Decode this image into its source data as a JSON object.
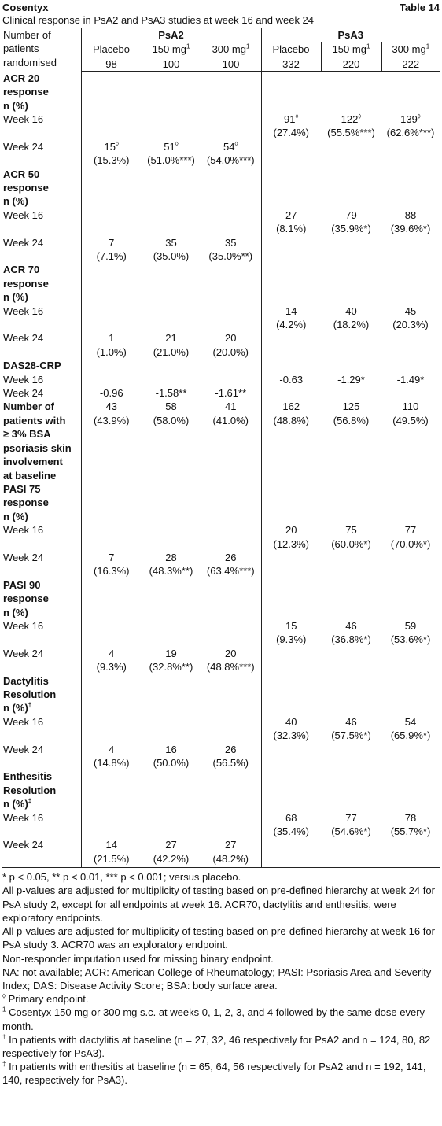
{
  "header": {
    "brand": "Cosentyx",
    "table_label": "Table 14",
    "caption": "Clinical response in PsA2 and PsA3 studies at week 16 and week 24"
  },
  "table": {
    "corner": [
      "Number of",
      "patients",
      "randomised"
    ],
    "groups": [
      "PsA2",
      "PsA3"
    ],
    "arms": [
      {
        "text": "Placebo"
      },
      {
        "text": "150 mg",
        "sup": "1"
      },
      {
        "text": "300 mg",
        "sup": "1"
      },
      {
        "text": "Placebo"
      },
      {
        "text": "150 mg",
        "sup": "1"
      },
      {
        "text": "300 mg",
        "sup": "1"
      }
    ],
    "n": [
      "98",
      "100",
      "100",
      "332",
      "220",
      "222"
    ],
    "rows": [
      {
        "label": [
          "ACR 20",
          "response",
          "n (%)"
        ],
        "bold": true
      },
      {
        "label": [
          "Week 16"
        ],
        "cells": [
          null,
          null,
          null,
          {
            "value": "91",
            "sup": "◊",
            "pct": "(27.4%)"
          },
          {
            "value": "122",
            "sup": "◊",
            "pct": "(55.5%***)"
          },
          {
            "value": "139",
            "sup": "◊",
            "pct": "(62.6%***)"
          }
        ]
      },
      {
        "label": [
          "Week 24"
        ],
        "cells": [
          {
            "value": "15",
            "sup": "◊",
            "pct": "(15.3%)"
          },
          {
            "value": "51",
            "sup": "◊",
            "pct": "(51.0%***)"
          },
          {
            "value": "54",
            "sup": "◊",
            "pct": "(54.0%***)"
          },
          null,
          null,
          null
        ]
      },
      {
        "label": [
          "ACR 50",
          "response",
          "n (%)"
        ],
        "bold": true
      },
      {
        "label": [
          "Week 16"
        ],
        "cells": [
          null,
          null,
          null,
          {
            "value": "27",
            "pct": "(8.1%)"
          },
          {
            "value": "79",
            "pct": "(35.9%*)"
          },
          {
            "value": "88",
            "pct": "(39.6%*)"
          }
        ]
      },
      {
        "label": [
          "Week 24"
        ],
        "cells": [
          {
            "value": "7",
            "pct": "(7.1%)"
          },
          {
            "value": "35",
            "pct": "(35.0%)"
          },
          {
            "value": "35",
            "pct": "(35.0%**)"
          },
          null,
          null,
          null
        ]
      },
      {
        "label": [
          "ACR 70",
          "response",
          "n (%)"
        ],
        "bold": true
      },
      {
        "label": [
          "Week 16"
        ],
        "cells": [
          null,
          null,
          null,
          {
            "value": "14",
            "pct": "(4.2%)"
          },
          {
            "value": "40",
            "pct": "(18.2%)"
          },
          {
            "value": "45",
            "pct": "(20.3%)"
          }
        ]
      },
      {
        "label": [
          "Week 24"
        ],
        "cells": [
          {
            "value": "1",
            "pct": "(1.0%)"
          },
          {
            "value": "21",
            "pct": "(21.0%)"
          },
          {
            "value": "20",
            "pct": "(20.0%)"
          },
          null,
          null,
          null
        ]
      },
      {
        "label": [
          "DAS28-CRP"
        ],
        "bold": true
      },
      {
        "label": [
          "Week 16"
        ],
        "cells": [
          null,
          null,
          null,
          {
            "value": "-0.63"
          },
          {
            "value": "-1.29*"
          },
          {
            "value": "-1.49*"
          }
        ]
      },
      {
        "label": [
          "Week 24"
        ],
        "cells": [
          {
            "value": "-0.96"
          },
          {
            "value": "-1.58**"
          },
          {
            "value": "-1.61**"
          },
          null,
          null,
          null
        ]
      },
      {
        "label": [
          "Number of",
          "patients with",
          "≥ 3% BSA",
          "psoriasis skin",
          "involvement",
          "at baseline"
        ],
        "bold": true,
        "cells": [
          {
            "value": "43",
            "pct": "(43.9%)"
          },
          {
            "value": "58",
            "pct": "(58.0%)"
          },
          {
            "value": "41",
            "pct": "(41.0%)"
          },
          {
            "value": "162",
            "pct": "(48.8%)"
          },
          {
            "value": "125",
            "pct": "(56.8%)"
          },
          {
            "value": "110",
            "pct": "(49.5%)"
          }
        ]
      },
      {
        "label": [
          "PASI 75",
          "response",
          "n (%)"
        ],
        "bold": true
      },
      {
        "label": [
          "Week 16"
        ],
        "cells": [
          null,
          null,
          null,
          {
            "value": "20",
            "pct": "(12.3%)"
          },
          {
            "value": "75",
            "pct": "(60.0%*)"
          },
          {
            "value": "77",
            "pct": "(70.0%*)"
          }
        ]
      },
      {
        "label": [
          "Week 24"
        ],
        "cells": [
          {
            "value": "7",
            "pct": "(16.3%)"
          },
          {
            "value": "28",
            "pct": "(48.3%**)"
          },
          {
            "value": "26",
            "pct": "(63.4%***)"
          },
          null,
          null,
          null
        ]
      },
      {
        "label": [
          "PASI 90",
          "response",
          "n (%)"
        ],
        "bold": true
      },
      {
        "label": [
          "Week 16"
        ],
        "cells": [
          null,
          null,
          null,
          {
            "value": "15",
            "pct": "(9.3%)"
          },
          {
            "value": "46",
            "pct": "(36.8%*)"
          },
          {
            "value": "59",
            "pct": "(53.6%*)"
          }
        ]
      },
      {
        "label": [
          "Week 24"
        ],
        "cells": [
          {
            "value": "4",
            "pct": "(9.3%)"
          },
          {
            "value": "19",
            "pct": "(32.8%**)"
          },
          {
            "value": "20",
            "pct": "(48.8%***)"
          },
          null,
          null,
          null
        ]
      },
      {
        "label": [
          "Dactylitis",
          "Resolution",
          "n (%)"
        ],
        "label_sup": "†",
        "bold": true
      },
      {
        "label": [
          "Week 16"
        ],
        "cells": [
          null,
          null,
          null,
          {
            "value": "40",
            "pct": "(32.3%)"
          },
          {
            "value": "46",
            "pct": "(57.5%*)"
          },
          {
            "value": "54",
            "pct": "(65.9%*)"
          }
        ]
      },
      {
        "label": [
          "Week 24"
        ],
        "cells": [
          {
            "value": "4",
            "pct": "(14.8%)"
          },
          {
            "value": "16",
            "pct": "(50.0%)"
          },
          {
            "value": "26",
            "pct": "(56.5%)"
          },
          null,
          null,
          null
        ]
      },
      {
        "label": [
          "Enthesitis",
          "Resolution",
          "n (%)"
        ],
        "label_sup": "‡",
        "bold": true
      },
      {
        "label": [
          "Week 16"
        ],
        "cells": [
          null,
          null,
          null,
          {
            "value": "68",
            "pct": "(35.4%)"
          },
          {
            "value": "77",
            "pct": "(54.6%*)"
          },
          {
            "value": "78",
            "pct": "(55.7%*)"
          }
        ]
      },
      {
        "label": [
          "Week 24"
        ],
        "cells": [
          {
            "value": "14",
            "pct": "(21.5%)"
          },
          {
            "value": "27",
            "pct": "(42.2%)"
          },
          {
            "value": "27",
            "pct": "(48.2%)"
          },
          null,
          null,
          null
        ]
      }
    ]
  },
  "footnotes": [
    {
      "text": "* p < 0.05, ** p < 0.01, *** p < 0.001; versus placebo."
    },
    {
      "text": "All p-values are adjusted for multiplicity of testing based on pre-defined hierarchy at week 24 for PsA study 2, except for all endpoints at week 16. ACR70, dactylitis and enthesitis, were exploratory endpoints."
    },
    {
      "text": "All p-values are adjusted for multiplicity of testing based on pre-defined hierarchy at week 16 for PsA study 3. ACR70 was an exploratory endpoint."
    },
    {
      "text": "Non-responder imputation used for missing binary endpoint."
    },
    {
      "text": "NA: not available; ACR: American College of Rheumatology; PASI: Psoriasis Area and Severity Index; DAS: Disease Activity Score; BSA: body surface area."
    },
    {
      "sup": "◊",
      "text": "Primary endpoint."
    },
    {
      "sup": "1",
      "text": "Cosentyx 150 mg or 300 mg s.c. at weeks 0, 1, 2, 3, and 4 followed by the same dose every month."
    },
    {
      "sup": "†",
      "text": "In patients with dactylitis at baseline (n = 27, 32, 46 respectively for PsA2 and n = 124, 80, 82 respectively for PsA3)."
    },
    {
      "sup": "‡",
      "text": "In patients with enthesitis at baseline (n = 65, 64, 56 respectively for PsA2 and n = 192, 141, 140, respectively for PsA3)."
    }
  ]
}
